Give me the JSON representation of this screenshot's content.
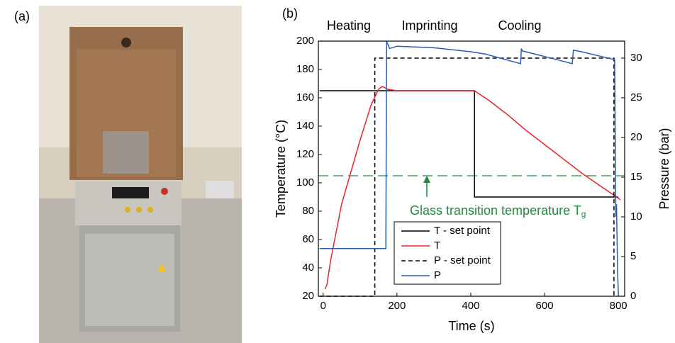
{
  "panel_labels": [
    "(a)",
    "(b)"
  ],
  "chart_data": {
    "type": "line",
    "phases": [
      "Heating",
      "Imprinting",
      "Cooling"
    ],
    "x_label": "Time (s)",
    "y_label": "Temperature (°C)",
    "y2_label": "Pressure (bar)",
    "xlim": [
      -13,
      817
    ],
    "xticks": [
      0,
      200,
      400,
      600,
      800
    ],
    "ylim": [
      20,
      200
    ],
    "yticks": [
      20,
      40,
      60,
      80,
      100,
      120,
      140,
      160,
      180,
      200
    ],
    "y2lim": [
      0,
      32.14
    ],
    "y2ticks": [
      0,
      5,
      10,
      15,
      20,
      25,
      30
    ],
    "series": [
      {
        "name": "T - set point",
        "color": "#000000",
        "dash": false,
        "x": [
          -10,
          410,
          410,
          800
        ],
        "values": [
          165,
          165,
          90,
          90
        ]
      },
      {
        "name": "T",
        "color": "#e8262a",
        "dash": false,
        "x": [
          5,
          10,
          20,
          50,
          100,
          130,
          150,
          160,
          175,
          200,
          300,
          410,
          450,
          500,
          550,
          600,
          650,
          700,
          750,
          790,
          805
        ],
        "values": [
          25,
          28,
          45,
          85,
          130,
          155,
          166,
          168,
          166,
          165,
          165,
          165,
          158,
          148,
          137,
          127,
          117,
          107,
          98,
          91,
          88
        ]
      },
      {
        "name": "P - set point",
        "color": "#000000",
        "dash": true,
        "axis": "y2",
        "x": [
          -10,
          140,
          140,
          788,
          788
        ],
        "values": [
          0,
          0,
          30,
          30,
          0
        ]
      },
      {
        "name": "P",
        "color": "#2a5db0",
        "dash": false,
        "axis": "y2",
        "x": [
          -10,
          170,
          172,
          180,
          200,
          300,
          400,
          440,
          535,
          537,
          540,
          600,
          675,
          678,
          700,
          790,
          793,
          795,
          798,
          800
        ],
        "values": [
          6,
          6,
          32.1,
          31.2,
          31.5,
          31.3,
          30.8,
          30.5,
          29.3,
          31.2,
          30.9,
          30.2,
          29.3,
          31,
          30.8,
          29.8,
          10,
          11.6,
          3,
          0
        ]
      }
    ],
    "threshold": {
      "value": 105,
      "color": "#1f8a3c"
    },
    "annotation": {
      "text": "Glass transition temperature T",
      "subscript": "g"
    }
  }
}
